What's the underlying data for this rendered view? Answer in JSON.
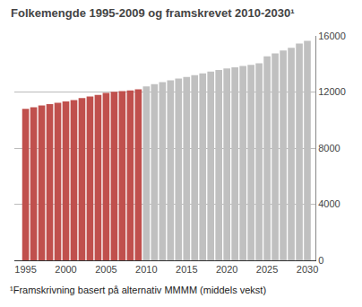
{
  "chart_data": {
    "type": "bar",
    "title": "Folkemengde 1995-2009 og framskrevet 2010-2030¹",
    "annotations": [
      "¹Framskrivning basert på alternativ MMMM (middels vekst)"
    ],
    "x": [
      1995,
      1996,
      1997,
      1998,
      1999,
      2000,
      2001,
      2002,
      2003,
      2004,
      2005,
      2006,
      2007,
      2008,
      2009,
      2010,
      2011,
      2012,
      2013,
      2014,
      2015,
      2016,
      2017,
      2018,
      2019,
      2020,
      2021,
      2022,
      2023,
      2024,
      2025,
      2026,
      2027,
      2028,
      2029,
      2030
    ],
    "series": [
      {
        "color": "#C0504D",
        "values": [
          10800,
          10920,
          11040,
          11130,
          11230,
          11330,
          11430,
          11570,
          11680,
          11790,
          11930,
          12020,
          12070,
          12120,
          12200,
          null,
          null,
          null,
          null,
          null,
          null,
          null,
          null,
          null,
          null,
          null,
          null,
          null,
          null,
          null,
          null,
          null,
          null,
          null,
          null,
          null
        ]
      },
      {
        "color": "#C0C0C0",
        "values": [
          null,
          null,
          null,
          null,
          null,
          null,
          null,
          null,
          null,
          null,
          null,
          null,
          null,
          null,
          null,
          12400,
          12560,
          12700,
          12840,
          12960,
          13080,
          13200,
          13330,
          13450,
          13570,
          13680,
          13760,
          13850,
          13940,
          14050,
          14550,
          14750,
          14960,
          15150,
          15450,
          15650
        ]
      }
    ],
    "xlim": [
      1993.6,
      2031.0
    ],
    "xticks": [
      1995,
      2000,
      2005,
      2010,
      2015,
      2020,
      2025,
      2030
    ],
    "ylim": [
      0,
      16000
    ],
    "yticks": [
      0,
      4000,
      8000,
      12000,
      16000
    ],
    "grid": true
  }
}
